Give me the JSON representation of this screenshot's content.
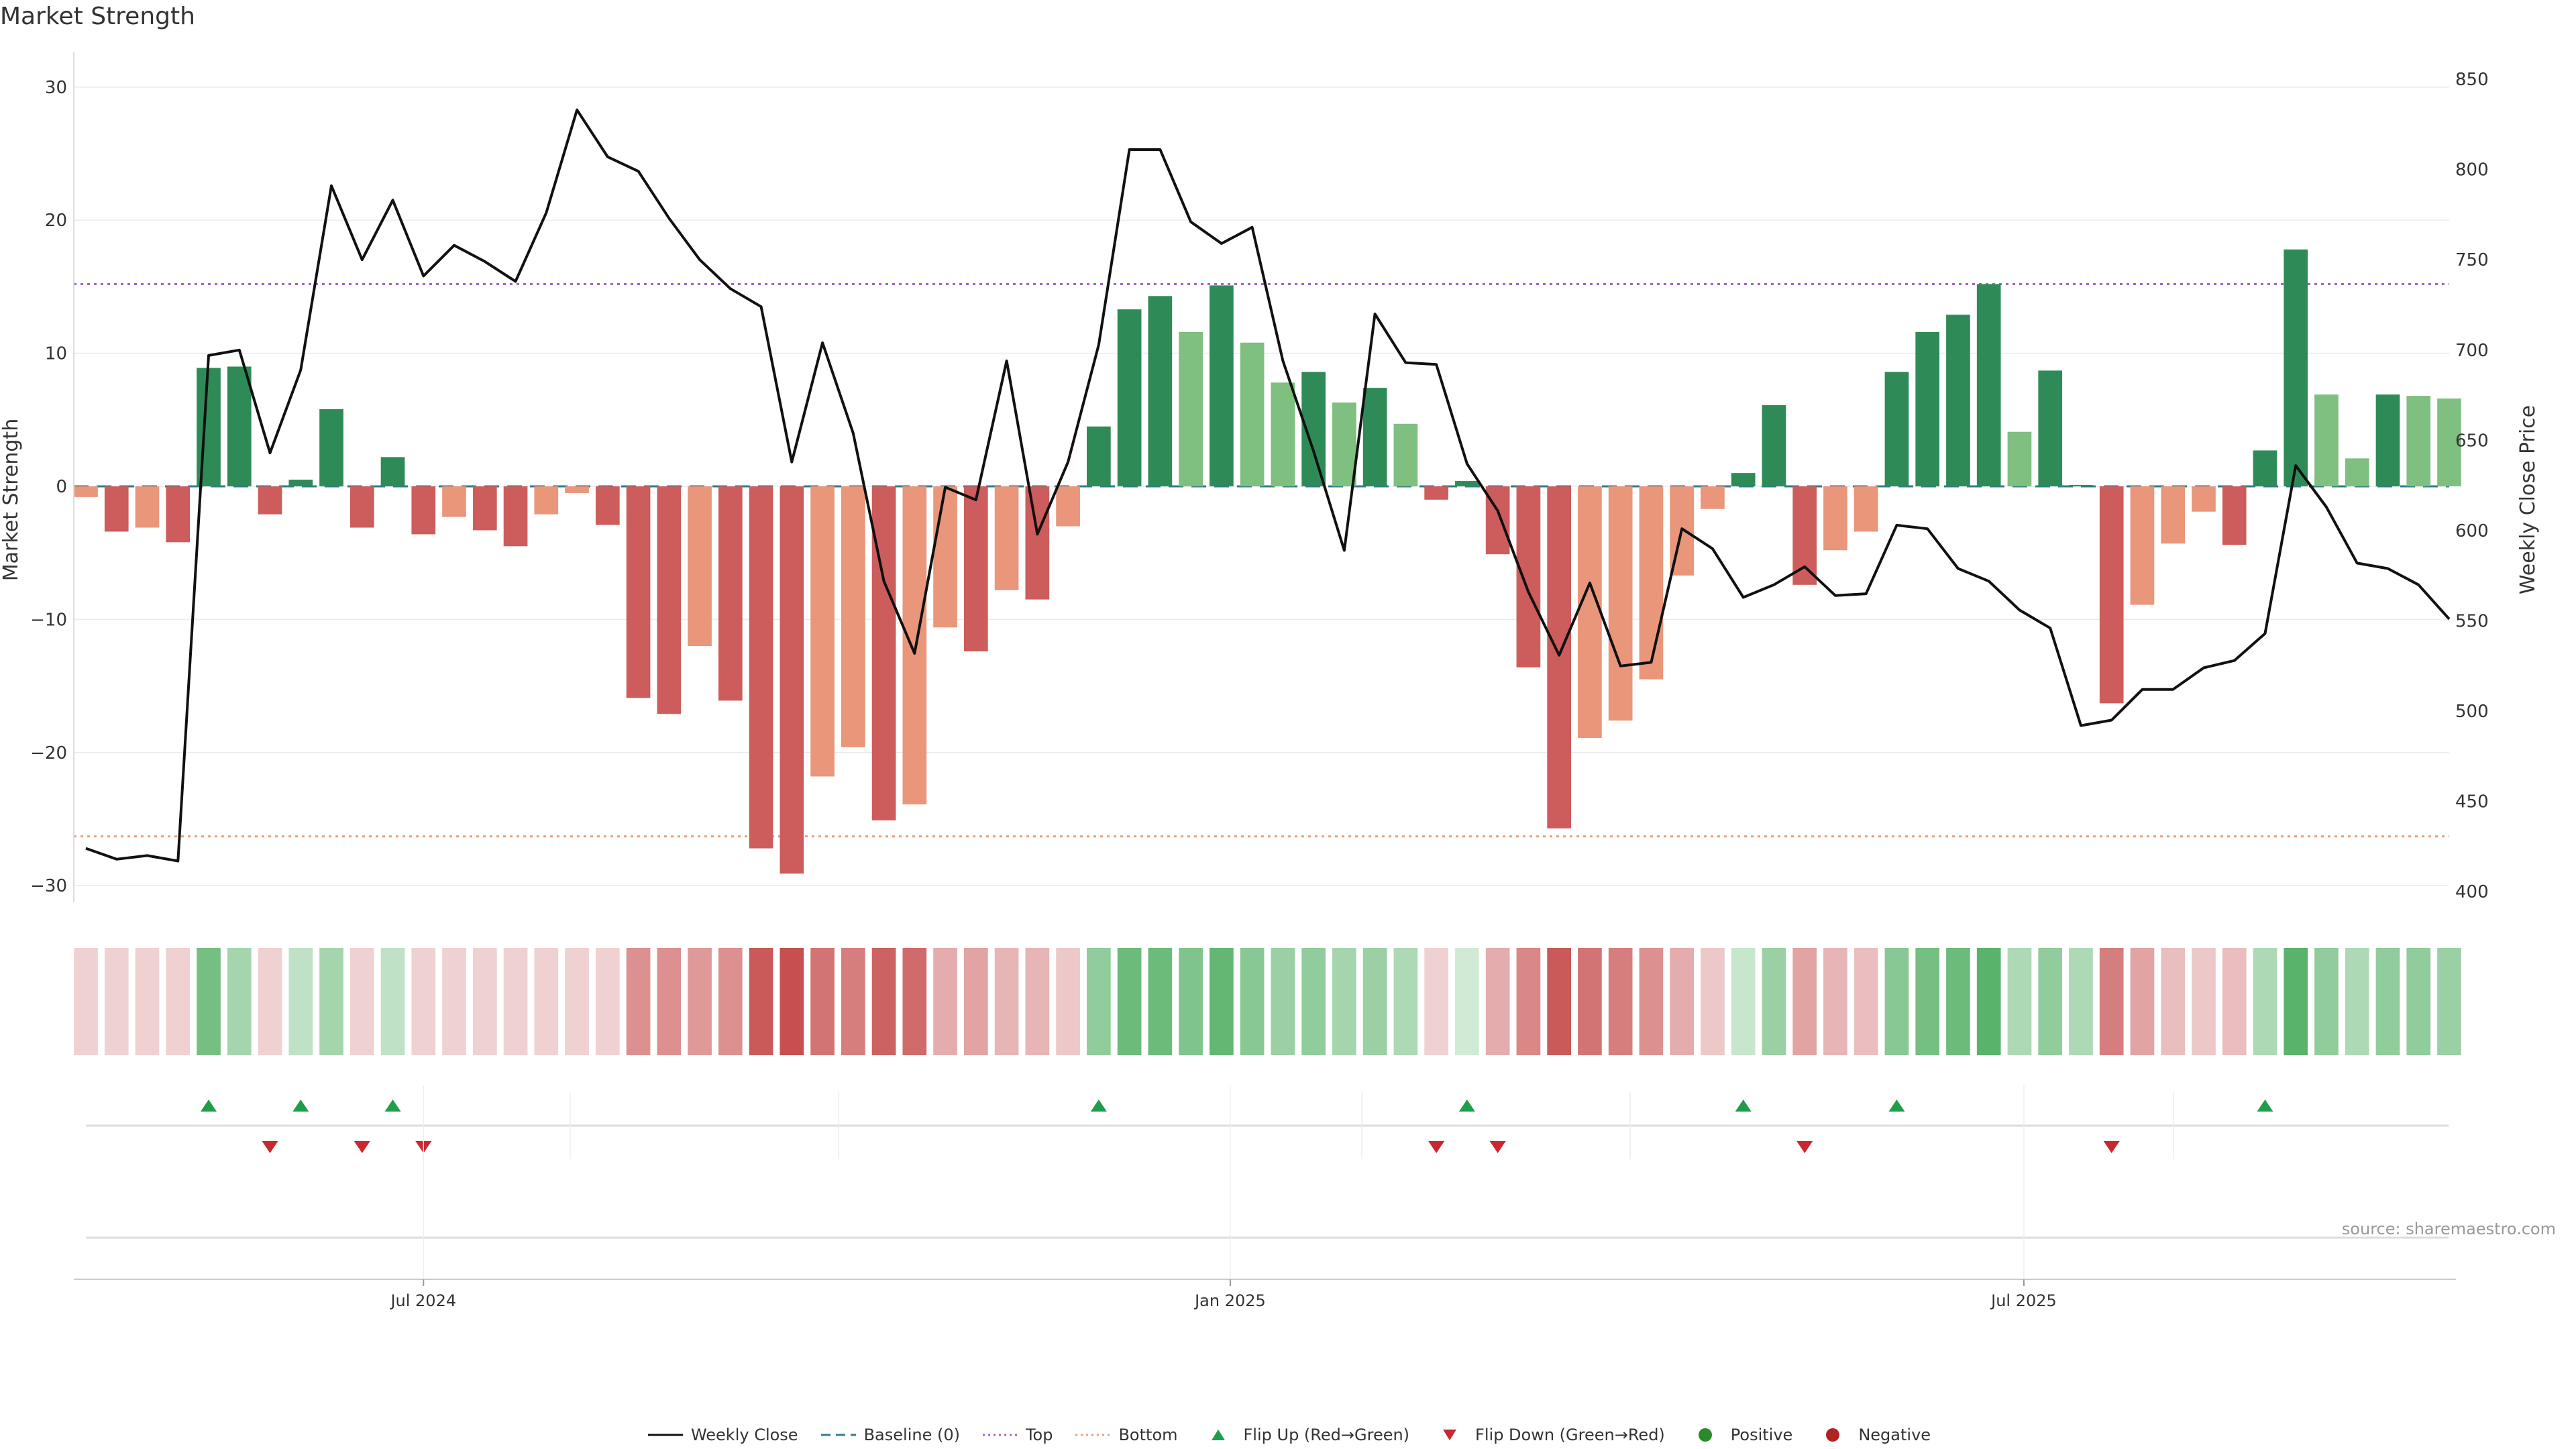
{
  "title": "Market Strength",
  "source": "source: sharemaestro.com",
  "colors": {
    "weekly_close": "#111111",
    "baseline": "#2f7d8a",
    "top": "#a463c8",
    "bottom": "#e6a07a",
    "bar_strong_pos": "#2e8b57",
    "bar_weak_pos": "#7fbf7f",
    "bar_strong_neg": "#cd5c5c",
    "bar_weak_neg": "#e9967a",
    "flip_up": "#1e9e4a",
    "flip_down": "#c8282e",
    "positive": "#2a8a2a",
    "negative": "#b22222"
  },
  "chart_data": {
    "type": "bar",
    "title": "Market Strength",
    "ylabel": "Market Strength",
    "y2label": "Weekly Close Price",
    "ylim": [
      -31,
      31
    ],
    "y2lim": [
      396,
      853
    ],
    "yticks": [
      30,
      20,
      10,
      0,
      -10,
      -20,
      -30
    ],
    "ytick_labels": [
      "30",
      "20",
      "10",
      "0",
      "−10",
      "−20",
      "−30"
    ],
    "y2ticks": [
      850,
      800,
      750,
      700,
      650,
      600,
      550,
      500,
      450,
      400
    ],
    "x_start": "2024-04-15",
    "week_step_days": 7,
    "x_ticks": [
      {
        "label": "Jul 2024",
        "date": "2024-07-01"
      },
      {
        "label": "Jan 2025",
        "date": "2025-01-01"
      },
      {
        "label": "Jul 2025",
        "date": "2025-07-01"
      }
    ],
    "top_level": 15.2,
    "bottom_level": -26.3,
    "baseline": 0,
    "bar_values": [
      -0.8,
      -3.4,
      -3.1,
      -4.2,
      8.9,
      9.0,
      -2.1,
      0.5,
      5.8,
      -3.1,
      2.2,
      -3.6,
      -2.3,
      -3.3,
      -4.5,
      -2.1,
      -0.5,
      -2.9,
      -15.9,
      -17.1,
      -12.0,
      -16.1,
      -27.2,
      -29.1,
      -21.8,
      -19.6,
      -25.1,
      -23.9,
      -10.6,
      -12.4,
      -7.8,
      -8.5,
      -3.0,
      4.5,
      13.3,
      14.3,
      11.6,
      15.1,
      10.8,
      7.8,
      8.6,
      6.3,
      7.4,
      4.7,
      -1.0,
      0.4,
      -5.1,
      -13.6,
      -25.7,
      -18.9,
      -17.6,
      -14.5,
      -6.7,
      -1.7,
      1.0,
      6.1,
      -7.4,
      -4.8,
      -3.4,
      8.6,
      11.6,
      12.9,
      15.2,
      4.1,
      8.7,
      0.1,
      -16.3,
      -8.9,
      -4.3,
      -1.9,
      -4.4,
      2.7,
      17.8,
      6.9,
      2.1,
      6.9,
      6.8,
      6.6
    ],
    "bar_strength": [
      "w",
      "s",
      "w",
      "s",
      "s",
      "s",
      "s",
      "s",
      "s",
      "s",
      "s",
      "s",
      "w",
      "s",
      "s",
      "w",
      "w",
      "s",
      "s",
      "s",
      "w",
      "s",
      "s",
      "s",
      "w",
      "w",
      "s",
      "w",
      "w",
      "s",
      "w",
      "s",
      "w",
      "s",
      "s",
      "s",
      "w",
      "s",
      "w",
      "w",
      "s",
      "w",
      "s",
      "w",
      "s",
      "s",
      "s",
      "s",
      "s",
      "w",
      "w",
      "w",
      "w",
      "w",
      "s",
      "s",
      "s",
      "w",
      "w",
      "s",
      "s",
      "s",
      "s",
      "w",
      "s",
      "s",
      "s",
      "w",
      "w",
      "w",
      "s",
      "s",
      "s",
      "w",
      "w",
      "s",
      "w",
      "w"
    ],
    "weekly_close": [
      424,
      418,
      420,
      417,
      697,
      700,
      643,
      689,
      791,
      750,
      783,
      741,
      758,
      749,
      738,
      776,
      833,
      807,
      799,
      773,
      750,
      734,
      724,
      638,
      704,
      654,
      572,
      532,
      624,
      617,
      694,
      598,
      638,
      703,
      811,
      811,
      771,
      759,
      768,
      694,
      644,
      589,
      720,
      693,
      692,
      637,
      611,
      566,
      531,
      571,
      525,
      527,
      601,
      590,
      563,
      570,
      580,
      564,
      565,
      603,
      601,
      579,
      572,
      556,
      546,
      492,
      495,
      512,
      512,
      524,
      528,
      543,
      636,
      613,
      582,
      579,
      570,
      551
    ],
    "heat_intensity": [
      0.25,
      0.25,
      0.25,
      0.25,
      0.75,
      0.5,
      0.25,
      0.35,
      0.5,
      0.25,
      0.35,
      0.25,
      0.25,
      0.25,
      0.25,
      0.25,
      0.25,
      0.25,
      0.6,
      0.6,
      0.55,
      0.6,
      0.9,
      0.95,
      0.75,
      0.7,
      0.85,
      0.8,
      0.45,
      0.5,
      0.4,
      0.4,
      0.3,
      0.6,
      0.8,
      0.8,
      0.7,
      0.85,
      0.65,
      0.55,
      0.6,
      0.5,
      0.55,
      0.45,
      0.25,
      0.25,
      0.45,
      0.65,
      0.9,
      0.75,
      0.7,
      0.6,
      0.45,
      0.3,
      0.3,
      0.55,
      0.5,
      0.4,
      0.35,
      0.65,
      0.75,
      0.8,
      0.9,
      0.45,
      0.6,
      0.45,
      0.7,
      0.5,
      0.35,
      0.3,
      0.35,
      0.45,
      0.9,
      0.6,
      0.45,
      0.6,
      0.6,
      0.55
    ],
    "flip_up_weeks": [
      4,
      7,
      10,
      33,
      45,
      54,
      59,
      71
    ],
    "flip_down_weeks": [
      6,
      9,
      11,
      44,
      46,
      56,
      66
    ],
    "legend": [
      {
        "label": "Weekly Close",
        "kind": "line"
      },
      {
        "label": "Baseline (0)",
        "kind": "dash"
      },
      {
        "label": "Top",
        "kind": "dot-purple"
      },
      {
        "label": "Bottom",
        "kind": "dot-orange"
      },
      {
        "label": "Flip Up (Red→Green)",
        "kind": "tri-up"
      },
      {
        "label": "Flip Down (Green→Red)",
        "kind": "tri-down"
      },
      {
        "label": "Positive",
        "kind": "dot-green"
      },
      {
        "label": "Negative",
        "kind": "dot-red"
      }
    ]
  }
}
